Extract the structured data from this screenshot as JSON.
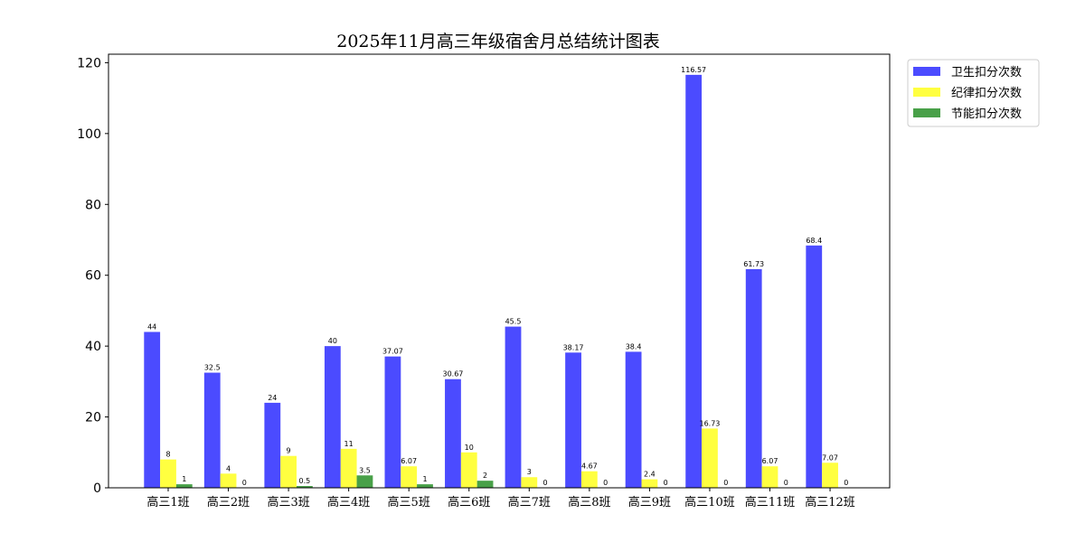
{
  "chart_data": {
    "type": "bar",
    "title": "2025年11月高三年级宿舍月总结统计图表",
    "xlabel": "",
    "ylabel": "",
    "ylim": [
      0,
      122.4
    ],
    "yticks": [
      0,
      20,
      40,
      60,
      80,
      100,
      120
    ],
    "categories": [
      "高三1班",
      "高三2班",
      "高三3班",
      "高三4班",
      "高三5班",
      "高三6班",
      "高三7班",
      "高三8班",
      "高三9班",
      "高三10班",
      "高三11班",
      "高三12班"
    ],
    "series": [
      {
        "name": "卫生扣分次数",
        "color": "#4b4bff",
        "values": [
          44,
          32.5,
          24,
          40,
          37.07,
          30.67,
          45.5,
          38.17,
          38.4,
          116.57,
          61.73,
          68.4
        ],
        "labels": [
          "44",
          "32.5",
          "24",
          "40",
          "37.07",
          "30.67",
          "45.5",
          "38.17",
          "38.4",
          "116.57",
          "61.73",
          "68.4"
        ]
      },
      {
        "name": "纪律扣分次数",
        "color": "#ffff40",
        "values": [
          8,
          4,
          9,
          11,
          6.07,
          10,
          3,
          4.67,
          2.4,
          16.73,
          6.07,
          7.07
        ],
        "labels": [
          "8",
          "4",
          "9",
          "11",
          "6.07",
          "10",
          "3",
          "4.67",
          "2.4",
          "16.73",
          "6.07",
          "7.07"
        ]
      },
      {
        "name": "节能扣分次数",
        "color": "#48a048",
        "values": [
          1,
          0,
          0.5,
          3.5,
          1,
          2,
          0,
          0,
          0,
          0,
          0,
          0
        ],
        "labels": [
          "1",
          "0",
          "0.5",
          "3.5",
          "1",
          "2",
          "0",
          "0",
          "0",
          "0",
          "0",
          "0"
        ]
      }
    ],
    "grid": false,
    "legend_position": "upper right, outside"
  }
}
